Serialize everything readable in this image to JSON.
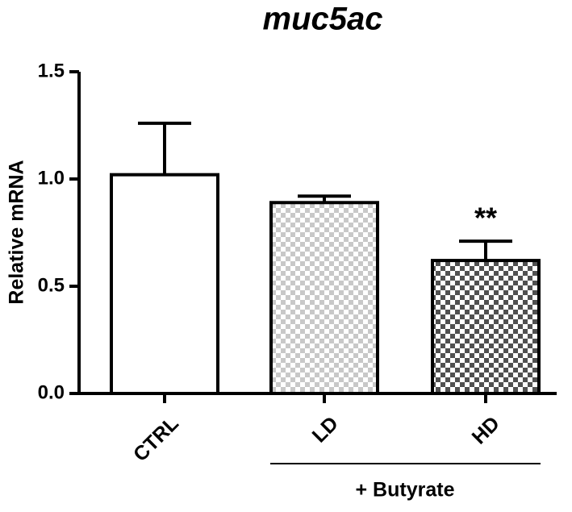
{
  "chart_data": {
    "type": "bar",
    "title": "muc5ac",
    "y_label": "Relative mRNA",
    "categories": [
      "CTRL",
      "LD",
      "HD"
    ],
    "values": [
      1.02,
      0.89,
      0.62
    ],
    "errors": [
      0.24,
      0.03,
      0.09
    ],
    "fills": [
      {
        "color": "#ffffff"
      },
      {
        "color": "#c8c8c8",
        "pattern": "checker"
      },
      {
        "color": "#505050",
        "pattern": "checker"
      }
    ],
    "annotations": [
      null,
      null,
      "**"
    ],
    "group_label": "+ Butyrate",
    "ylim": [
      0,
      1.5
    ],
    "yticks": [
      {
        "value": 0,
        "label": "0.0"
      },
      0.5,
      {
        "value": 1,
        "label": "1.0"
      },
      1.5
    ]
  }
}
